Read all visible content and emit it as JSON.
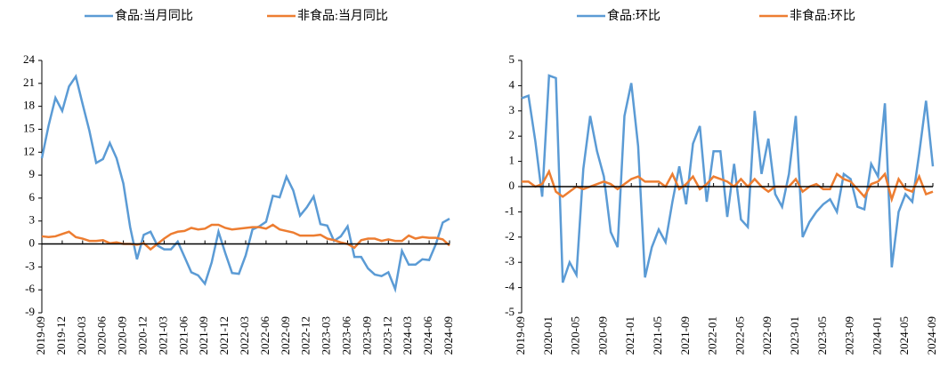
{
  "chart_data": [
    {
      "type": "line",
      "categories": [
        "2019-09",
        null,
        null,
        "2019-12",
        null,
        null,
        "2020-03",
        null,
        null,
        "2020-06",
        null,
        null,
        "2020-09",
        null,
        null,
        "2020-12",
        null,
        null,
        "2021-03",
        null,
        null,
        "2021-06",
        null,
        null,
        "2021-09",
        null,
        null,
        "2021-12",
        null,
        null,
        "2022-03",
        null,
        null,
        "2022-06",
        null,
        null,
        "2022-09",
        null,
        null,
        "2022-12",
        null,
        null,
        "2023-03",
        null,
        null,
        "2023-06",
        null,
        null,
        "2023-09",
        null,
        null,
        "2023-12",
        null,
        null,
        "2024-03",
        null,
        null,
        "2024-06",
        null,
        null,
        "2024-09"
      ],
      "series": [
        {
          "name": "食品:当月同比",
          "color": "#5b9bd5",
          "values": [
            11.2,
            15.5,
            19.1,
            17.4,
            20.6,
            21.9,
            18.3,
            14.8,
            10.6,
            11.1,
            13.2,
            11.2,
            7.9,
            2.2,
            -2.0,
            1.2,
            1.6,
            -0.2,
            -0.7,
            -0.7,
            0.3,
            -1.7,
            -3.7,
            -4.1,
            -5.2,
            -2.4,
            1.6,
            -1.2,
            -3.8,
            -3.9,
            -1.5,
            1.9,
            2.3,
            2.9,
            6.3,
            6.1,
            8.8,
            7.0,
            3.7,
            4.8,
            6.2,
            2.6,
            2.4,
            0.4,
            1.0,
            2.3,
            -1.7,
            -1.7,
            -3.2,
            -4.0,
            -4.2,
            -3.7,
            -5.9,
            -0.9,
            -2.7,
            -2.7,
            -2.0,
            -2.1,
            0.0,
            2.8,
            3.3
          ]
        },
        {
          "name": "非食品:当月同比",
          "color": "#ed7d31",
          "values": [
            1.0,
            0.9,
            1.0,
            1.3,
            1.6,
            0.9,
            0.7,
            0.4,
            0.4,
            0.5,
            0.1,
            0.2,
            0.0,
            0.0,
            -0.1,
            0.1,
            -0.7,
            0.0,
            0.7,
            1.3,
            1.6,
            1.7,
            2.1,
            1.9,
            2.0,
            2.5,
            2.5,
            2.1,
            1.9,
            2.0,
            2.1,
            2.2,
            2.2,
            2.0,
            2.5,
            1.9,
            1.7,
            1.5,
            1.1,
            1.1,
            1.1,
            1.2,
            0.7,
            0.5,
            0.2,
            0.0,
            -0.5,
            0.5,
            0.7,
            0.7,
            0.4,
            0.6,
            0.4,
            0.4,
            1.1,
            0.7,
            0.9,
            0.8,
            0.8,
            0.6,
            -0.2
          ]
        }
      ],
      "ylim": [
        -9,
        24
      ],
      "yticks": [
        -9,
        -6,
        -3,
        0,
        3,
        6,
        9,
        12,
        15,
        18,
        21,
        24
      ]
    },
    {
      "type": "line",
      "categories": [
        "2019-09",
        null,
        null,
        null,
        "2020-01",
        null,
        null,
        null,
        "2020-05",
        null,
        null,
        null,
        "2020-09",
        null,
        null,
        null,
        "2021-01",
        null,
        null,
        null,
        "2021-05",
        null,
        null,
        null,
        "2021-09",
        null,
        null,
        null,
        "2022-01",
        null,
        null,
        null,
        "2022-05",
        null,
        null,
        null,
        "2022-09",
        null,
        null,
        null,
        "2023-01",
        null,
        null,
        null,
        "2023-05",
        null,
        null,
        null,
        "2023-09",
        null,
        null,
        null,
        "2024-01",
        null,
        null,
        null,
        "2024-05",
        null,
        null,
        null,
        "2024-09"
      ],
      "series": [
        {
          "name": "食品:环比",
          "color": "#5b9bd5",
          "values": [
            3.5,
            3.6,
            1.8,
            -0.4,
            4.4,
            4.3,
            -3.8,
            -3.0,
            -3.5,
            0.7,
            2.8,
            1.4,
            0.4,
            -1.8,
            -2.4,
            2.8,
            4.1,
            1.6,
            -3.6,
            -2.4,
            -1.7,
            -2.2,
            -0.6,
            0.8,
            -0.7,
            1.7,
            2.4,
            -0.6,
            1.4,
            1.4,
            -1.2,
            0.9,
            -1.3,
            -1.6,
            3.0,
            0.5,
            1.9,
            -0.3,
            -0.8,
            0.5,
            2.8,
            -2.0,
            -1.4,
            -1.0,
            -0.7,
            -0.5,
            -1.0,
            0.5,
            0.3,
            -0.8,
            -0.9,
            0.9,
            0.4,
            3.3,
            -3.2,
            -1.0,
            -0.3,
            -0.6,
            1.3,
            3.4,
            0.8
          ]
        },
        {
          "name": "非食品:环比",
          "color": "#ed7d31",
          "values": [
            0.2,
            0.2,
            0.0,
            0.1,
            0.6,
            -0.2,
            -0.4,
            -0.2,
            0.0,
            -0.1,
            0.0,
            0.1,
            0.2,
            0.1,
            -0.1,
            0.1,
            0.3,
            0.4,
            0.2,
            0.2,
            0.2,
            0.0,
            0.5,
            -0.1,
            0.1,
            0.4,
            -0.1,
            0.1,
            0.4,
            0.3,
            0.2,
            0.0,
            0.3,
            0.0,
            0.3,
            0.0,
            -0.2,
            0.0,
            0.0,
            0.0,
            0.3,
            -0.2,
            0.0,
            0.1,
            -0.1,
            -0.1,
            0.5,
            0.3,
            0.2,
            -0.1,
            -0.4,
            0.1,
            0.2,
            0.5,
            -0.5,
            0.3,
            -0.1,
            -0.2,
            0.4,
            -0.3,
            -0.2
          ]
        }
      ],
      "ylim": [
        -5,
        5
      ],
      "yticks": [
        -5,
        -4,
        -3,
        -2,
        -1,
        0,
        1,
        2,
        3,
        4,
        5
      ]
    }
  ]
}
